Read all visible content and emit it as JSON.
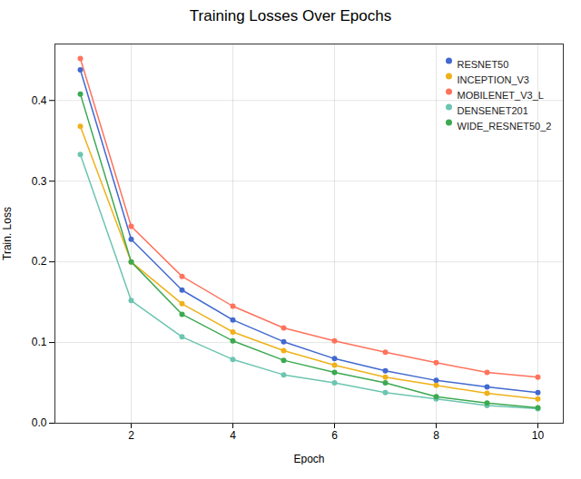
{
  "chart_data": {
    "type": "line",
    "title": "Training Losses Over Epochs",
    "xlabel": "Epoch",
    "ylabel": "Train. Loss",
    "x": [
      1,
      2,
      3,
      4,
      5,
      6,
      7,
      8,
      9,
      10
    ],
    "series": [
      {
        "name": "RESNET50",
        "marker": "o",
        "values": [
          0.438,
          0.228,
          0.165,
          0.128,
          0.101,
          0.08,
          0.065,
          0.053,
          0.045,
          0.038
        ]
      },
      {
        "name": "INCEPTION_V3",
        "marker": "o",
        "values": [
          0.368,
          0.2,
          0.148,
          0.113,
          0.09,
          0.072,
          0.057,
          0.047,
          0.037,
          0.03
        ]
      },
      {
        "name": "MOBILENET_V3_L",
        "marker": "o",
        "values": [
          0.452,
          0.244,
          0.182,
          0.145,
          0.118,
          0.102,
          0.088,
          0.075,
          0.063,
          0.057
        ]
      },
      {
        "name": "DENSENET201",
        "marker": "o",
        "values": [
          0.333,
          0.152,
          0.107,
          0.079,
          0.06,
          0.05,
          0.038,
          0.03,
          0.022,
          0.018
        ]
      },
      {
        "name": "WIDE_RESNET50_2",
        "marker": "o",
        "values": [
          0.408,
          0.2,
          0.135,
          0.102,
          0.078,
          0.063,
          0.05,
          0.033,
          0.025,
          0.019
        ]
      }
    ],
    "xlim": [
      0.5,
      10.5
    ],
    "ylim": [
      0.0,
      0.47
    ],
    "xticks": [
      2,
      4,
      6,
      8,
      10
    ],
    "yticks": [
      {
        "value": 0.0,
        "label": "0.0"
      },
      0.1,
      0.2,
      0.3,
      0.4
    ],
    "grid": true,
    "legend": "upper right"
  }
}
